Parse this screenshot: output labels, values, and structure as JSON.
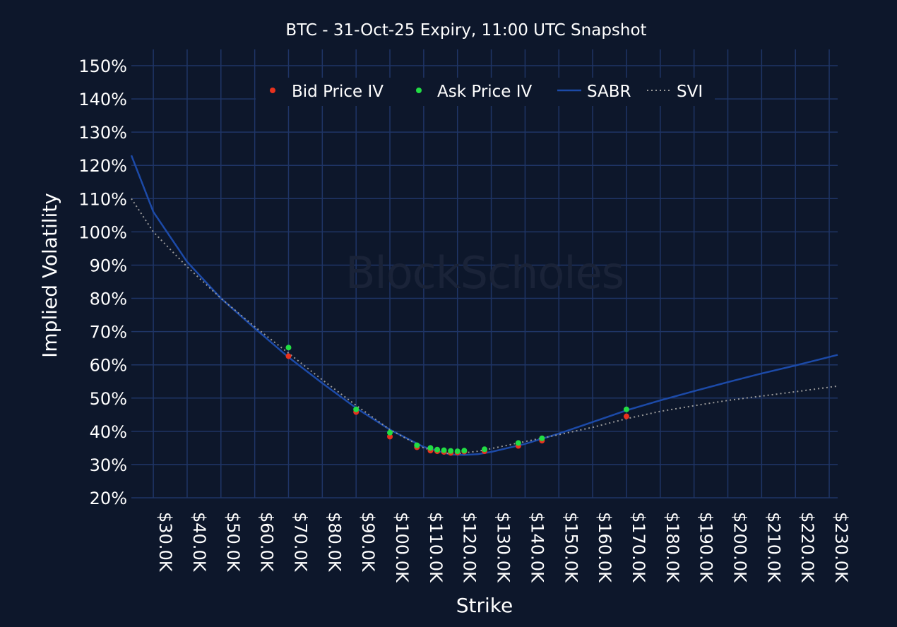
{
  "chart_data": {
    "type": "line",
    "title": "BTC - 31-Oct-25 Expiry, 11:00 UTC Snapshot",
    "xlabel": "Strike",
    "ylabel": "Implied Volatility",
    "watermark": "BlockScholes",
    "xlim": [
      23500,
      232500
    ],
    "ylim": [
      20,
      150
    ],
    "xticks": [
      30000,
      40000,
      50000,
      60000,
      70000,
      80000,
      90000,
      100000,
      110000,
      120000,
      130000,
      140000,
      150000,
      160000,
      170000,
      180000,
      190000,
      200000,
      210000,
      220000,
      230000
    ],
    "xtick_labels": [
      "$30.0K",
      "$40.0K",
      "$50.0K",
      "$60.0K",
      "$70.0K",
      "$80.0K",
      "$90.0K",
      "$100.0K",
      "$110.0K",
      "$120.0K",
      "$130.0K",
      "$140.0K",
      "$150.0K",
      "$160.0K",
      "$170.0K",
      "$180.0K",
      "$190.0K",
      "$200.0K",
      "$210.0K",
      "$220.0K",
      "$230.0K"
    ],
    "yticks": [
      20,
      30,
      40,
      50,
      60,
      70,
      80,
      90,
      100,
      110,
      120,
      130,
      140,
      150
    ],
    "ytick_labels": [
      "20%",
      "30%",
      "40%",
      "50%",
      "60%",
      "70%",
      "80%",
      "90%",
      "100%",
      "110%",
      "120%",
      "130%",
      "140%",
      "150%"
    ],
    "grid": true,
    "legend_position": "top-center",
    "colors": {
      "background": "#0d172b",
      "grid": "#1f3566",
      "text": "#ffffff",
      "bid": "#e8321e",
      "ask": "#22dd44",
      "sabr": "#1c4aa8",
      "svi": "#9a9a9a"
    },
    "series": [
      {
        "name": "Bid Price IV",
        "kind": "scatter",
        "points": [
          [
            70000,
            62.6
          ],
          [
            90000,
            45.8
          ],
          [
            100000,
            38.4
          ],
          [
            108000,
            35.2
          ],
          [
            112000,
            34.2
          ],
          [
            114000,
            34.0
          ],
          [
            116000,
            33.8
          ],
          [
            118000,
            33.5
          ],
          [
            120000,
            33.6
          ],
          [
            122000,
            33.9
          ],
          [
            128000,
            34.0
          ],
          [
            138000,
            35.6
          ],
          [
            145000,
            37.2
          ],
          [
            170000,
            44.5
          ]
        ]
      },
      {
        "name": "Ask Price IV",
        "kind": "scatter",
        "points": [
          [
            70000,
            65.2
          ],
          [
            90000,
            46.6
          ],
          [
            100000,
            39.6
          ],
          [
            108000,
            35.8
          ],
          [
            112000,
            35.0
          ],
          [
            114000,
            34.5
          ],
          [
            116000,
            34.3
          ],
          [
            118000,
            34.1
          ],
          [
            120000,
            34.0
          ],
          [
            122000,
            34.2
          ],
          [
            128000,
            34.6
          ],
          [
            138000,
            36.5
          ],
          [
            145000,
            37.9
          ],
          [
            170000,
            46.6
          ]
        ]
      },
      {
        "name": "SABR",
        "kind": "line",
        "points": [
          [
            23500,
            123
          ],
          [
            30000,
            106
          ],
          [
            40000,
            91
          ],
          [
            50000,
            80
          ],
          [
            60000,
            71
          ],
          [
            70000,
            62.3
          ],
          [
            80000,
            54.5
          ],
          [
            90000,
            47
          ],
          [
            100000,
            40.5
          ],
          [
            110000,
            35.3
          ],
          [
            118000,
            33.0
          ],
          [
            122000,
            32.9
          ],
          [
            126000,
            33.1
          ],
          [
            130000,
            33.8
          ],
          [
            140000,
            36.2
          ],
          [
            150000,
            39.3
          ],
          [
            160000,
            42.8
          ],
          [
            170000,
            46.3
          ],
          [
            180000,
            49.3
          ],
          [
            190000,
            52.1
          ],
          [
            200000,
            54.8
          ],
          [
            210000,
            57.4
          ],
          [
            220000,
            59.8
          ],
          [
            232500,
            63.0
          ]
        ]
      },
      {
        "name": "SVI",
        "kind": "line",
        "points": [
          [
            23500,
            110
          ],
          [
            30000,
            100
          ],
          [
            40000,
            89.5
          ],
          [
            50000,
            80
          ],
          [
            60000,
            71.5
          ],
          [
            70000,
            63.5
          ],
          [
            80000,
            55.5
          ],
          [
            90000,
            47.8
          ],
          [
            100000,
            40.5
          ],
          [
            110000,
            35.0
          ],
          [
            116000,
            33.4
          ],
          [
            120000,
            33.3
          ],
          [
            126000,
            34.0
          ],
          [
            130000,
            34.8
          ],
          [
            140000,
            36.9
          ],
          [
            150000,
            39.0
          ],
          [
            160000,
            41.2
          ],
          [
            170000,
            43.8
          ],
          [
            180000,
            46.0
          ],
          [
            190000,
            47.7
          ],
          [
            200000,
            49.3
          ],
          [
            210000,
            50.6
          ],
          [
            220000,
            51.9
          ],
          [
            232500,
            53.6
          ]
        ]
      }
    ]
  }
}
